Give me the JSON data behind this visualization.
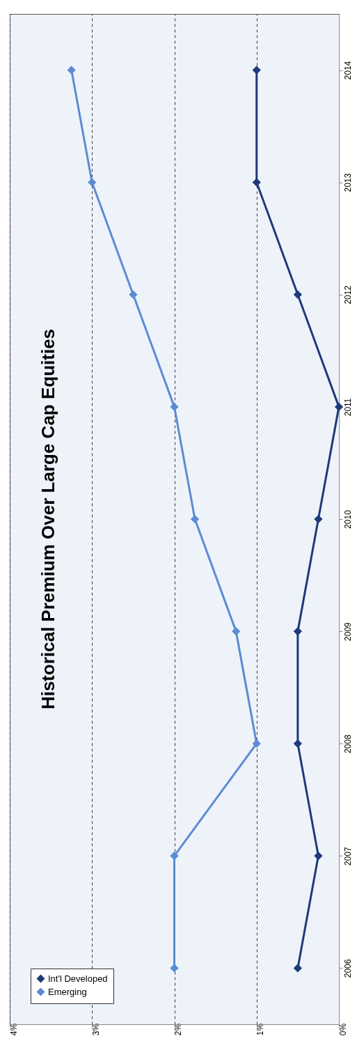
{
  "chart_data": {
    "type": "line",
    "title": "Historical Premium Over Large Cap Equities",
    "orientation": "horizontal",
    "categories": [
      "2014",
      "2013",
      "2012",
      "2011",
      "2010",
      "2009",
      "2008",
      "2007",
      "2006"
    ],
    "series": [
      {
        "name": "Int'l Developed",
        "color": "#1f3a7a",
        "values": [
          1,
          1,
          0.5,
          0,
          0.25,
          0.5,
          0.5,
          0.25,
          0.5
        ]
      },
      {
        "name": "Emerging",
        "color": "#5b8bd4",
        "values": [
          3.25,
          3,
          2.5,
          2,
          1.75,
          1.25,
          1,
          2,
          2
        ]
      }
    ],
    "xlim": [
      4,
      0
    ],
    "xticks": [
      {
        "value": 4,
        "label": "4%"
      },
      {
        "value": 3,
        "label": "3%"
      },
      {
        "value": 2,
        "label": "2%"
      },
      {
        "value": 1,
        "label": "1%"
      },
      {
        "value": 0,
        "label": "0%"
      }
    ],
    "grid": "x",
    "legend": "bottom left",
    "marker": "diamond",
    "line_style": "solid"
  }
}
